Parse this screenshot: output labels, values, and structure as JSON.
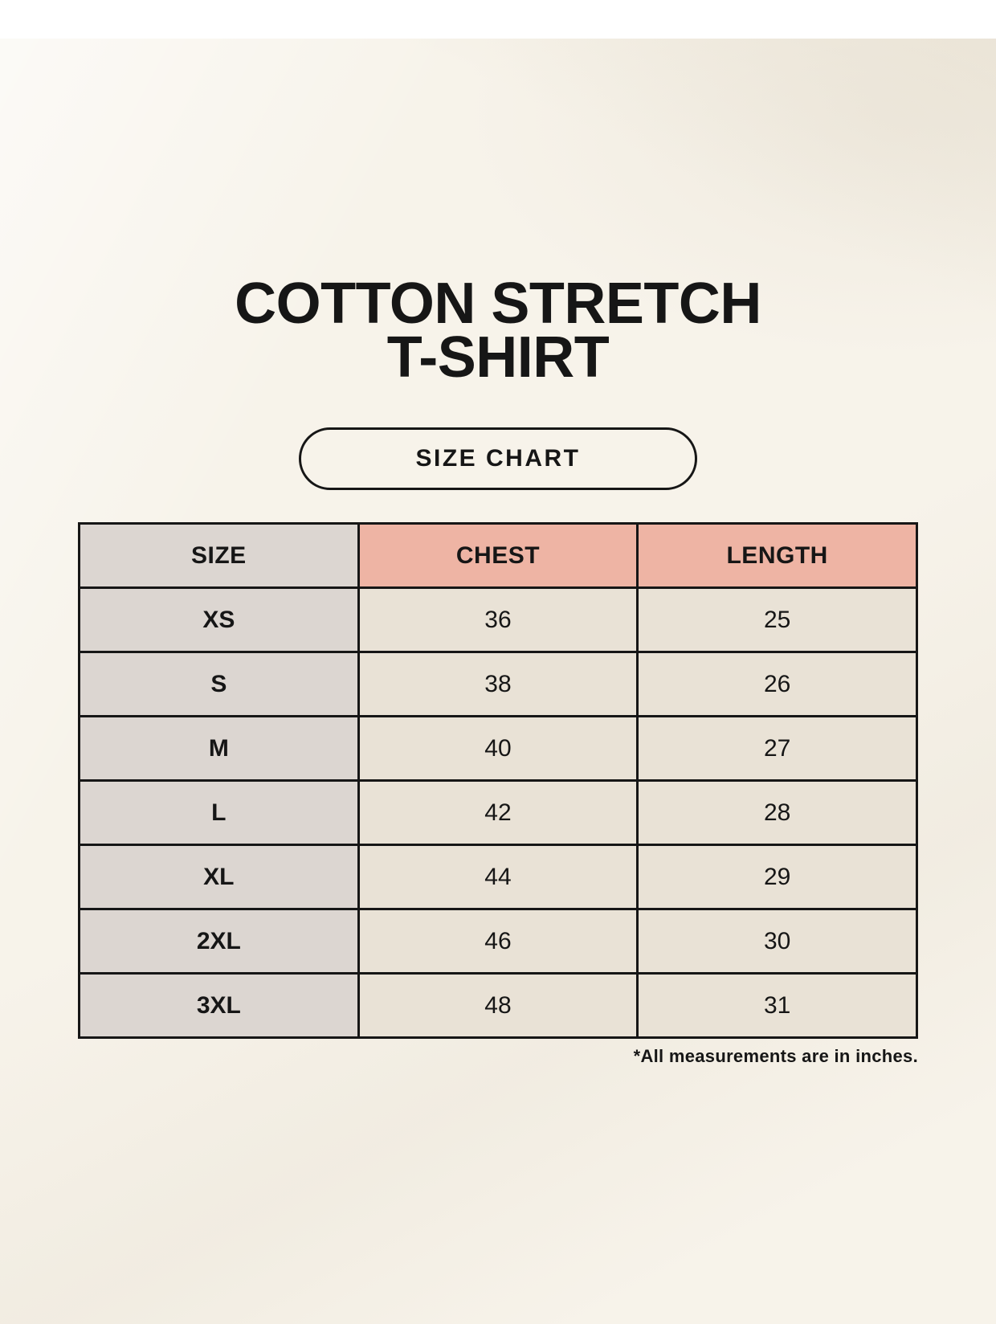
{
  "header": {
    "title_line1": "COTTON STRETCH",
    "title_line2": "T-SHIRT",
    "badge_label": "SIZE CHART"
  },
  "footnote": "*All measurements are in inches.",
  "colors": {
    "page_background": "#f7f3ea",
    "accent_salmon": "#eeb4a4",
    "neutral_gray": "#dcd6d1",
    "cell_cream": "#e9e2d6",
    "ink": "#161616"
  },
  "chart_data": {
    "type": "table",
    "title": "COTTON STRETCH T-SHIRT",
    "subtitle": "SIZE CHART",
    "columns": [
      "SIZE",
      "CHEST",
      "LENGTH"
    ],
    "rows": [
      [
        "XS",
        36,
        25
      ],
      [
        "S",
        38,
        26
      ],
      [
        "M",
        40,
        27
      ],
      [
        "L",
        42,
        28
      ],
      [
        "XL",
        44,
        29
      ],
      [
        "2XL",
        46,
        30
      ],
      [
        "3XL",
        48,
        31
      ]
    ],
    "units_note": "*All measurements are in inches."
  }
}
